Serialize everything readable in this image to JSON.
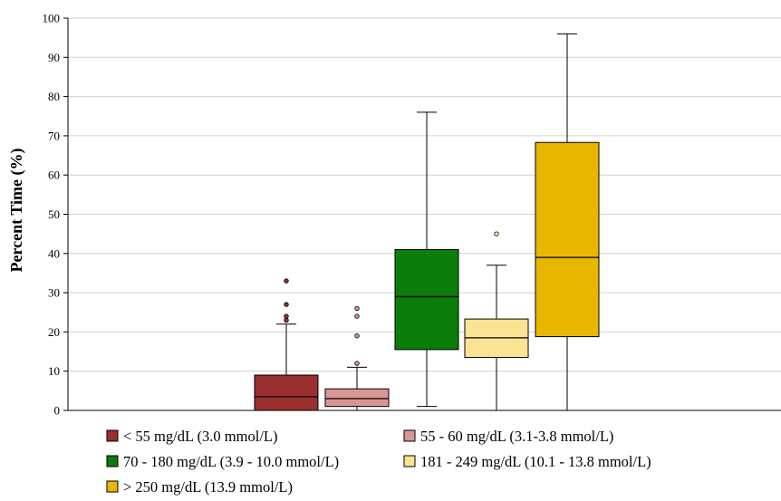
{
  "chart_data": {
    "type": "box",
    "title": "",
    "xlabel": "",
    "ylabel": "Percent Time (%)",
    "ylim": [
      0,
      100
    ],
    "yticks": [
      0,
      10,
      20,
      30,
      40,
      50,
      60,
      70,
      80,
      90,
      100
    ],
    "grid": "horizontal",
    "legend_placement": "bottom",
    "series": [
      {
        "name": "< 55 mg/dL (3.0 mmol/L)",
        "color": "#9b2f2f",
        "min": 0,
        "q1": 0,
        "median": 3.5,
        "q3": 9,
        "max": 22,
        "outliers": [
          23,
          24,
          27,
          33
        ]
      },
      {
        "name": "55 - 60 mg/dL (3.1-3.8 mmol/L)",
        "color": "#d99593",
        "min": 0,
        "q1": 1,
        "median": 3,
        "q3": 5.5,
        "max": 11,
        "outliers": [
          12,
          19,
          24,
          26
        ]
      },
      {
        "name": "70 - 180 mg/dL (3.9 - 10.0 mmol/L)",
        "color": "#0b7d0b",
        "min": 1,
        "q1": 15.5,
        "median": 29,
        "q3": 41,
        "max": 76,
        "outliers": []
      },
      {
        "name": "181 - 249 mg/dL (10.1 - 13.8 mmol/L)",
        "color": "#fbe394",
        "min": 0,
        "q1": 13.5,
        "median": 18.5,
        "q3": 23.3,
        "max": 37,
        "outliers": [
          45
        ]
      },
      {
        "name": "> 250 mg/dL (13.9 mmol/L)",
        "color": "#e8b800",
        "min": 0,
        "q1": 18.8,
        "median": 39,
        "q3": 68.3,
        "max": 96,
        "outliers": []
      }
    ]
  }
}
